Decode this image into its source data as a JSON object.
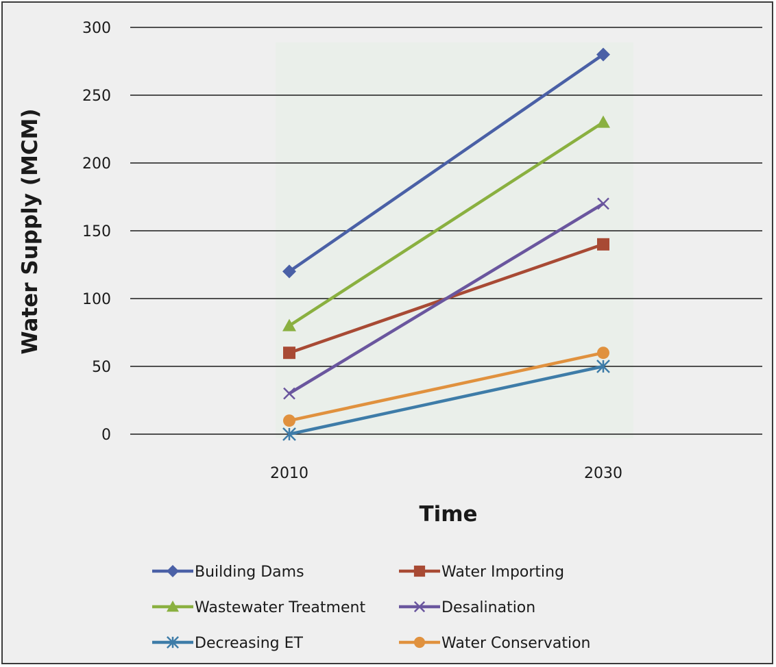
{
  "chart_data": {
    "type": "line",
    "title": "",
    "xlabel": "Time",
    "ylabel": "Water Supply (MCM)",
    "categories": [
      "2010",
      "2030"
    ],
    "ylim": [
      0,
      300
    ],
    "yticks": [
      0,
      50,
      100,
      150,
      200,
      250,
      300
    ],
    "grid": true,
    "legend_position": "bottom",
    "series": [
      {
        "name": "Building Dams",
        "values": [
          120,
          280
        ],
        "color": "#4a60a6",
        "marker": "diamond"
      },
      {
        "name": "Water Importing",
        "values": [
          60,
          140
        ],
        "color": "#a84a34",
        "marker": "square"
      },
      {
        "name": "Wastewater Treatment",
        "values": [
          80,
          230
        ],
        "color": "#8ab040",
        "marker": "triangle"
      },
      {
        "name": "Desalination",
        "values": [
          30,
          170
        ],
        "color": "#6a569e",
        "marker": "x"
      },
      {
        "name": "Decreasing ET",
        "values": [
          0,
          50
        ],
        "color": "#3e7ca8",
        "marker": "star"
      },
      {
        "name": "Water Conservation",
        "values": [
          10,
          60
        ],
        "color": "#e0913e",
        "marker": "circle"
      }
    ]
  }
}
